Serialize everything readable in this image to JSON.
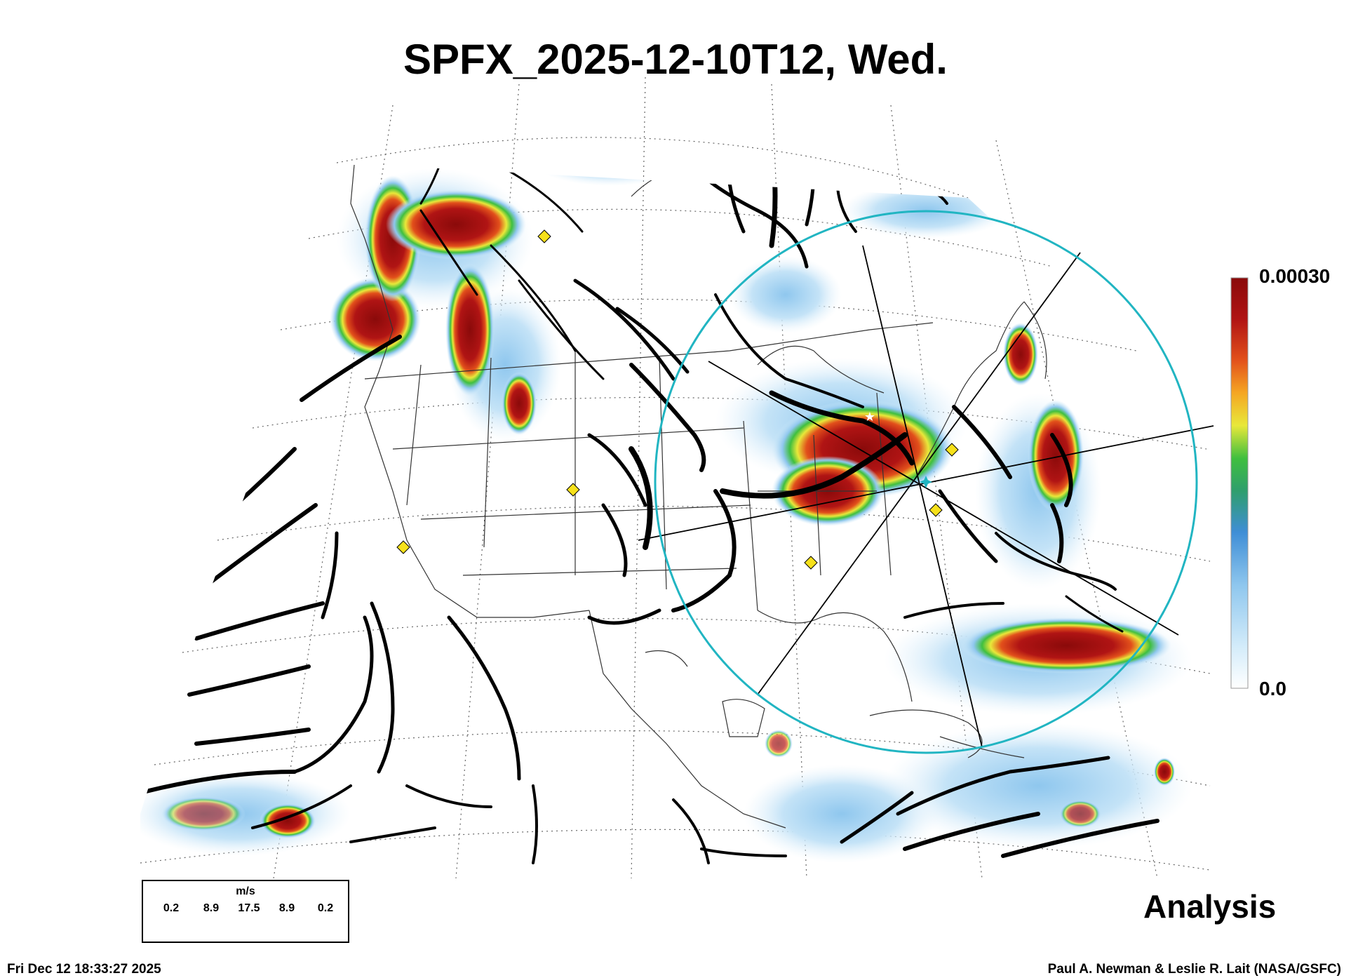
{
  "title": "SPFX_2025-12-10T12, Wed.",
  "colorbar": {
    "max_label": "0.00030",
    "min_label": "0.0",
    "colors": [
      "#ffffff",
      "#d4ecfa",
      "#8fc7ee",
      "#3f8ed6",
      "#2f9e6e",
      "#3fbf3f",
      "#e8e83a",
      "#f5a623",
      "#e2501b",
      "#b01414",
      "#8a0a0a"
    ]
  },
  "stamp": "Analysis",
  "timestamp": "Fri Dec 12 18:33:27 2025",
  "credit": "Paul A. Newman & Leslie R. Lait (NASA/GSFC)",
  "wind_legend": {
    "unit": "m/s",
    "ticks": [
      "0.2",
      "8.9",
      "17.5",
      "8.9",
      "0.2"
    ]
  },
  "map": {
    "range_ring_color": "#21b5c2",
    "marker_color": "#f7e11b",
    "markers": [
      "diamond",
      "diamond",
      "diamond",
      "diamond",
      "diamond",
      "diamond",
      "diamond"
    ],
    "center_marker_color": "#21b5c2"
  }
}
